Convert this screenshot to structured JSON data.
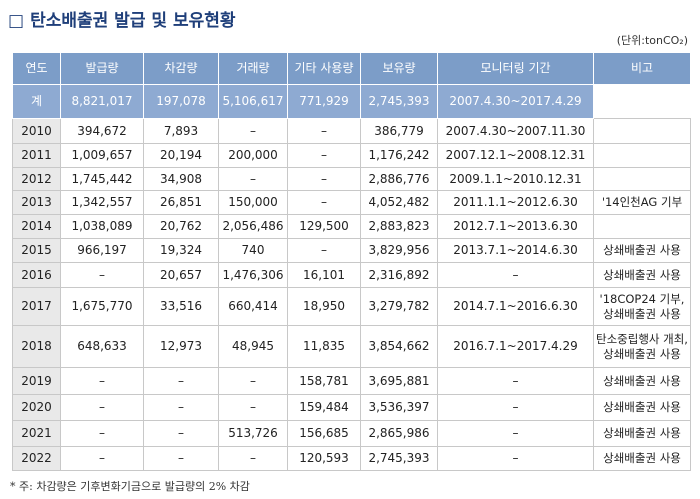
{
  "title": {
    "marker": "□",
    "text": "탄소배출권 발급 및 보유현황"
  },
  "unit": "(단위:tonCO₂)",
  "table": {
    "header": [
      "연도",
      "발급량",
      "차감량",
      "거래량",
      "기타 사용량",
      "보유량",
      "모니터링 기간",
      "비고"
    ],
    "total": [
      "계",
      "8,821,017",
      "197,078",
      "5,106,617",
      "771,929",
      "2,745,393",
      "2007.4.30~2017.4.29"
    ],
    "rows": [
      {
        "cells": [
          "2010",
          "394,672",
          "7,893",
          "–",
          "–",
          "386,779",
          "2007.4.30~2007.11.30"
        ]
      },
      {
        "cells": [
          "2011",
          "1,009,657",
          "20,194",
          "200,000",
          "–",
          "1,176,242",
          "2007.12.1~2008.12.31"
        ]
      },
      {
        "cells": [
          "2012",
          "1,745,442",
          "34,908",
          "–",
          "–",
          "2,886,776",
          "2009.1.1~2010.12.31"
        ]
      },
      {
        "cells": [
          "2013",
          "1,342,557",
          "26,851",
          "150,000",
          "–",
          "4,052,482",
          "2011.1.1~2012.6.30"
        ],
        "note": [
          "'14인천AG 기부"
        ]
      },
      {
        "cells": [
          "2014",
          "1,038,089",
          "20,762",
          "2,056,486",
          "129,500",
          "2,883,823",
          "2012.7.1~2013.6.30"
        ]
      },
      {
        "cells": [
          "2015",
          "966,197",
          "19,324",
          "740",
          "–",
          "3,829,956",
          "2013.7.1~2014.6.30"
        ],
        "note": [
          "상쇄배출권 사용"
        ]
      },
      {
        "cells": [
          "2016",
          "–",
          "20,657",
          "1,476,306",
          "16,101",
          "2,316,892",
          "–"
        ],
        "note": [
          "상쇄배출권 사용"
        ]
      },
      {
        "cells": [
          "2017",
          "1,675,770",
          "33,516",
          "660,414",
          "18,950",
          "3,279,782",
          "2014.7.1~2016.6.30"
        ],
        "note": [
          "'18COP24 기부,",
          "상쇄배출권 사용"
        ]
      },
      {
        "cells": [
          "2018",
          "648,633",
          "12,973",
          "48,945",
          "11,835",
          "3,854,662",
          "2016.7.1~2017.4.29"
        ],
        "note": [
          "탄소중립행사 개최,",
          "상쇄배출권 사용"
        ]
      },
      {
        "cells": [
          "2019",
          "–",
          "–",
          "–",
          "158,781",
          "3,695,881",
          "–"
        ],
        "note": [
          "상쇄배출권 사용"
        ]
      },
      {
        "cells": [
          "2020",
          "–",
          "–",
          "–",
          "159,484",
          "3,536,397",
          "–"
        ],
        "note": [
          "상쇄배출권 사용"
        ]
      },
      {
        "cells": [
          "2021",
          "–",
          "–",
          "513,726",
          "156,685",
          "2,865,986",
          "–"
        ],
        "note": [
          "상쇄배출권 사용"
        ]
      },
      {
        "cells": [
          "2022",
          "–",
          "–",
          "–",
          "120,593",
          "2,745,393",
          "–"
        ],
        "note": [
          "상쇄배출권 사용"
        ]
      }
    ]
  },
  "footnote": "* 주: 차감량은 기후변화기금으로 발급량의 2% 차감"
}
